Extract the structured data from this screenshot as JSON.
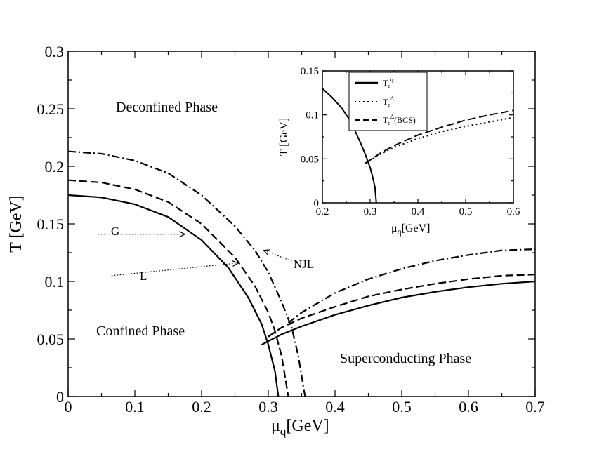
{
  "chart_data": [
    {
      "type": "line",
      "role": "main",
      "xlabel": "μ",
      "xlabel_sub": "q",
      "xlabel_unit": "[GeV]",
      "ylabel": "T [GeV]",
      "xlim": [
        0,
        0.7
      ],
      "ylim": [
        0,
        0.3
      ],
      "xticks": [
        0,
        0.1,
        0.2,
        0.3,
        0.4,
        0.5,
        0.6,
        0.7
      ],
      "yticks": [
        0,
        0.05,
        0.1,
        0.15,
        0.2,
        0.25,
        0.3
      ],
      "xtick_labels": [
        "0",
        "0.1",
        "0.2",
        "0.3",
        "0.4",
        "0.5",
        "0.6",
        "0.7"
      ],
      "ytick_labels": [
        "0",
        "0.05",
        "0.1",
        "0.15",
        "0.2",
        "0.25",
        "0.3"
      ],
      "grid": false,
      "regions": {
        "deconfined": "Deconfined Phase",
        "confined": "Confined Phase",
        "superconducting": "Superconducting Phase"
      },
      "annotations": [
        {
          "text": "G",
          "x": 0.035,
          "y": 0.141,
          "arrow_to": [
            0.175,
            0.141
          ]
        },
        {
          "text": "L",
          "x": 0.055,
          "y": 0.105,
          "arrow_to": [
            0.255,
            0.116
          ]
        },
        {
          "text": "NJL",
          "x": 0.345,
          "y": 0.116,
          "arrow_from": [
            0.343,
            0.116
          ],
          "arrow_to": [
            0.293,
            0.127
          ]
        }
      ],
      "series": [
        {
          "style": "solid",
          "x": [
            0,
            0.05,
            0.1,
            0.15,
            0.2,
            0.24,
            0.27,
            0.29,
            0.3,
            0.31,
            0.315
          ],
          "y": [
            0.175,
            0.173,
            0.167,
            0.156,
            0.136,
            0.112,
            0.086,
            0.063,
            0.045,
            0.022,
            0
          ]
        },
        {
          "style": "solid",
          "x": [
            0.29,
            0.32,
            0.35,
            0.4,
            0.45,
            0.5,
            0.55,
            0.6,
            0.65,
            0.7
          ],
          "y": [
            0.045,
            0.054,
            0.061,
            0.071,
            0.079,
            0.086,
            0.091,
            0.095,
            0.098,
            0.1
          ]
        },
        {
          "style": "dashed",
          "x": [
            0,
            0.05,
            0.1,
            0.15,
            0.2,
            0.25,
            0.28,
            0.3,
            0.31,
            0.32,
            0.33
          ],
          "y": [
            0.188,
            0.186,
            0.18,
            0.169,
            0.15,
            0.121,
            0.096,
            0.073,
            0.057,
            0.035,
            0
          ]
        },
        {
          "style": "dashed",
          "x": [
            0.3,
            0.32,
            0.35,
            0.4,
            0.45,
            0.5,
            0.55,
            0.6,
            0.65,
            0.7
          ],
          "y": [
            0.052,
            0.06,
            0.068,
            0.078,
            0.087,
            0.093,
            0.098,
            0.102,
            0.105,
            0.106
          ]
        },
        {
          "style": "dashdot",
          "x": [
            0,
            0.05,
            0.1,
            0.15,
            0.2,
            0.25,
            0.28,
            0.3,
            0.32,
            0.335,
            0.345,
            0.355
          ],
          "y": [
            0.213,
            0.211,
            0.205,
            0.194,
            0.175,
            0.148,
            0.127,
            0.108,
            0.082,
            0.06,
            0.035,
            0
          ]
        },
        {
          "style": "dashdot",
          "x": [
            0.33,
            0.35,
            0.4,
            0.45,
            0.5,
            0.55,
            0.6,
            0.65,
            0.7
          ],
          "y": [
            0.064,
            0.073,
            0.09,
            0.102,
            0.111,
            0.118,
            0.123,
            0.127,
            0.128
          ]
        }
      ]
    },
    {
      "type": "line",
      "role": "inset",
      "xlabel": "μ",
      "xlabel_sub": "q",
      "xlabel_unit": "[GeV]",
      "ylabel": "T [GeV]",
      "xlim": [
        0.2,
        0.6
      ],
      "ylim": [
        0,
        0.15
      ],
      "xticks": [
        0.2,
        0.3,
        0.4,
        0.5,
        0.6
      ],
      "yticks": [
        0,
        0.05,
        0.1,
        0.15
      ],
      "xtick_labels": [
        "0.2",
        "0.3",
        "0.4",
        "0.5",
        "0.6"
      ],
      "ytick_labels": [
        "0",
        "0.05",
        "0.1",
        "0.15"
      ],
      "legend_position": "top-left",
      "legend": [
        {
          "style": "solid",
          "base": "T",
          "sub": "c",
          "sup": "φ",
          "suffix": ""
        },
        {
          "style": "dotted",
          "base": "T",
          "sub": "c",
          "sup": "Δ",
          "suffix": ""
        },
        {
          "style": "dashed",
          "base": "T",
          "sub": "c",
          "sup": "Δ",
          "suffix": "(BCS)"
        }
      ],
      "series": [
        {
          "style": "solid",
          "x": [
            0.2,
            0.22,
            0.24,
            0.26,
            0.28,
            0.29,
            0.3,
            0.305,
            0.31,
            0.313
          ],
          "y": [
            0.13,
            0.12,
            0.108,
            0.092,
            0.068,
            0.055,
            0.04,
            0.03,
            0.018,
            0
          ]
        },
        {
          "style": "dotted",
          "x": [
            0.29,
            0.32,
            0.35,
            0.4,
            0.45,
            0.5,
            0.55,
            0.6
          ],
          "y": [
            0.045,
            0.055,
            0.063,
            0.073,
            0.081,
            0.087,
            0.092,
            0.097
          ]
        },
        {
          "style": "dashed",
          "x": [
            0.29,
            0.32,
            0.35,
            0.4,
            0.45,
            0.5,
            0.55,
            0.6
          ],
          "y": [
            0.045,
            0.056,
            0.065,
            0.077,
            0.086,
            0.094,
            0.1,
            0.105
          ]
        }
      ]
    }
  ]
}
